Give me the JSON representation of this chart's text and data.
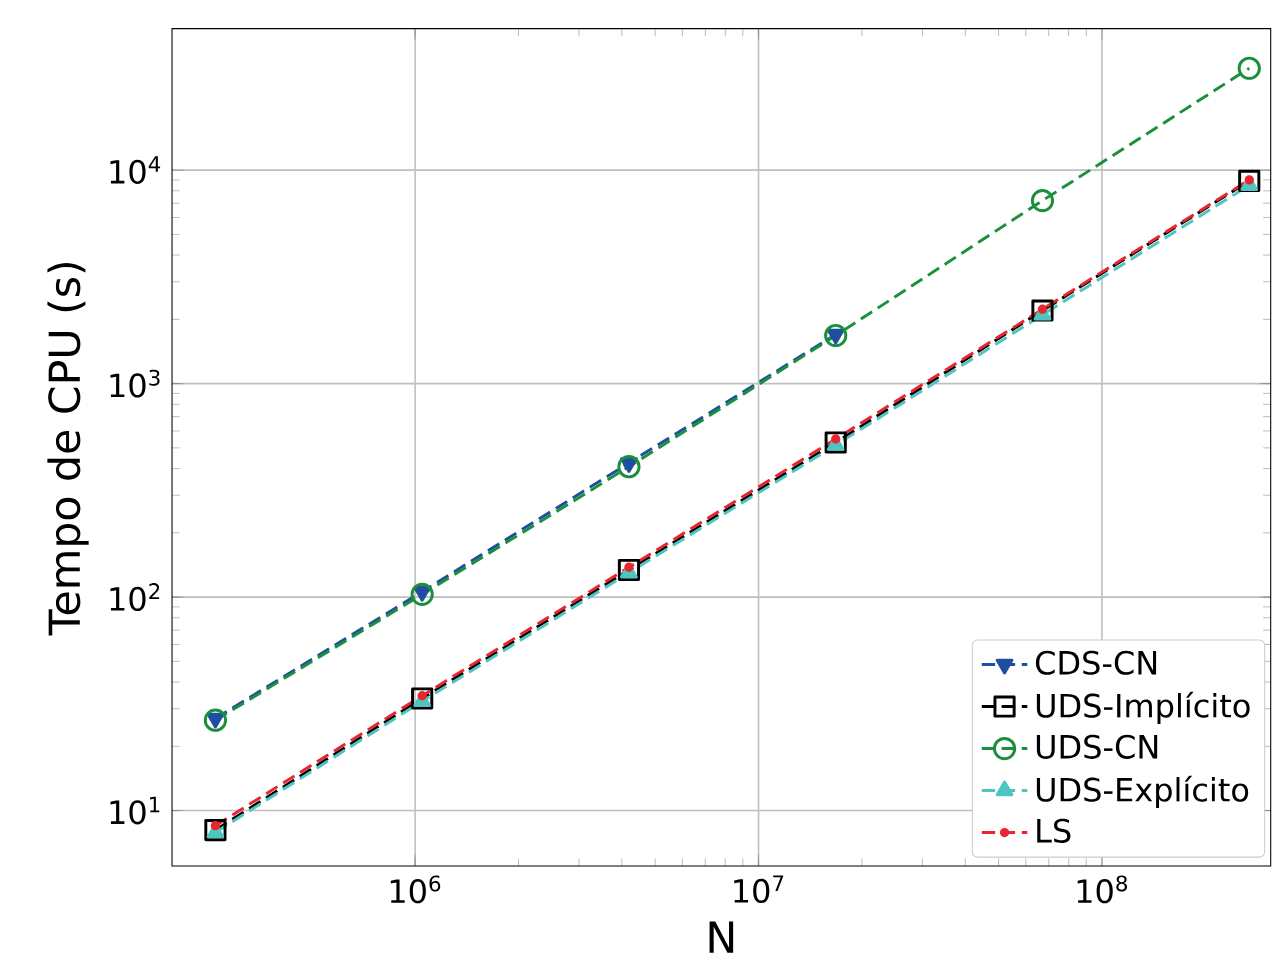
{
  "chart_data": {
    "type": "line",
    "xlabel": "N",
    "ylabel": "Tempo de CPU (s)",
    "x": [
      262144,
      1048576,
      4194304,
      16777216,
      67108864,
      268435456
    ],
    "series": [
      {
        "name": "CDS-CN",
        "color": "#1f4fa0",
        "marker": "triangle_down",
        "values": [
          27,
          106,
          425,
          1700,
          null,
          null
        ]
      },
      {
        "name": "UDS-Implícito",
        "color": "#000000",
        "marker": "square",
        "values": [
          8.1,
          33.5,
          134,
          530,
          2200,
          8900
        ]
      },
      {
        "name": "UDS-CN",
        "color": "#1a8f3c",
        "marker": "circle",
        "values": [
          26.5,
          103,
          408,
          1680,
          7200,
          30000
        ]
      },
      {
        "name": "UDS-Explícito",
        "color": "#4fc4c0",
        "marker": "triangle",
        "values": [
          7.9,
          32.5,
          130,
          515,
          2100,
          8500
        ]
      },
      {
        "name": "LS",
        "color": "#e8262f",
        "marker": "dot",
        "values": [
          8.5,
          34.5,
          138,
          550,
          2230,
          9000
        ]
      }
    ],
    "log": "xy",
    "xlim": [
      196000,
      310000000
    ],
    "ylim": [
      5.5,
      46000
    ],
    "xticks": [
      {
        "value": 1000000,
        "label": "10$^{6}$"
      },
      {
        "value": 10000000,
        "label": "10$^{7}$"
      },
      {
        "value": 100000000,
        "label": "10$^{8}$"
      }
    ],
    "yticks": [
      {
        "value": 10,
        "label": "10$^{1}$"
      },
      {
        "value": 100,
        "label": "10$^{2}$"
      },
      {
        "value": 1000,
        "label": "10$^{3}$"
      },
      {
        "value": 10000,
        "label": "10$^{4}$"
      }
    ],
    "grid": true,
    "legend": "bottom right",
    "line_style": "dashed"
  }
}
